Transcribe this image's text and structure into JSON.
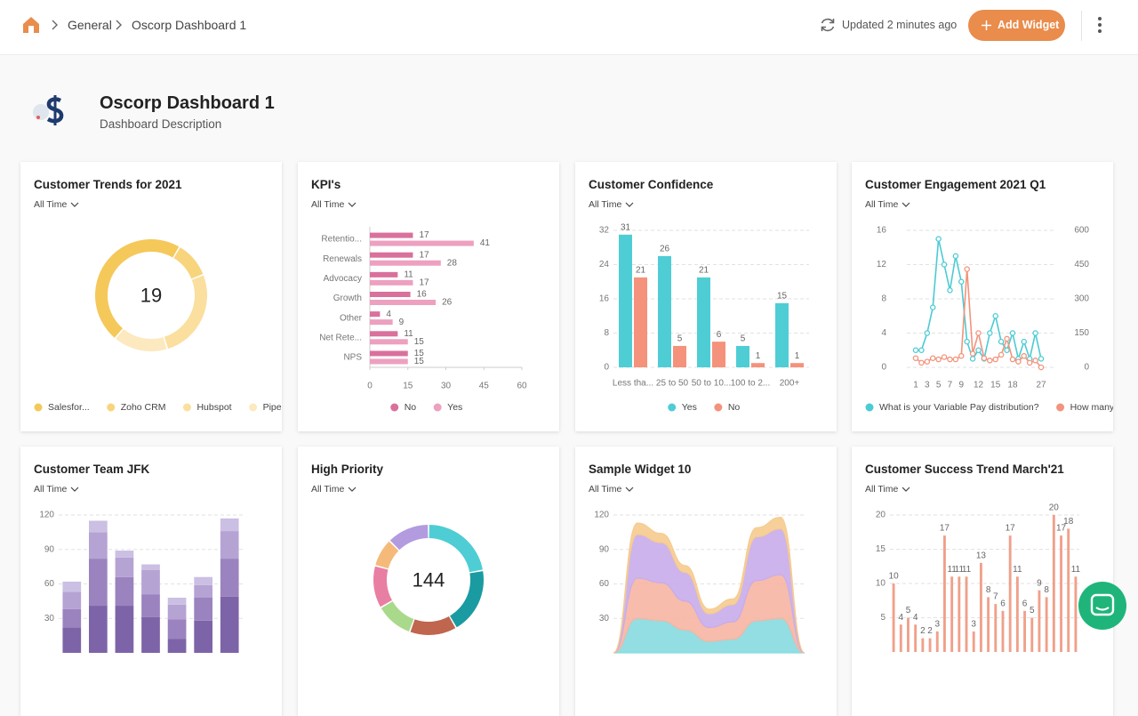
{
  "header": {
    "breadcrumbs": [
      "General",
      "Oscorp Dashboard 1"
    ],
    "status": "Updated 2 minutes ago",
    "button": "Add Widget"
  },
  "dashboard": {
    "title": "Oscorp Dashboard 1",
    "description": "Dashboard Description"
  },
  "chart_data": [
    {
      "type": "donut",
      "title": "Customer Trends for 2021",
      "filter": "All Time",
      "total": 19,
      "categories": [
        "Salesfor...",
        "Zoho CRM",
        "Hubspot",
        "Pipedriv..."
      ],
      "values": [
        9,
        2,
        5,
        3
      ],
      "colors": [
        "#f5c85a",
        "#f8d47c",
        "#fadf9e",
        "#fce9bf"
      ]
    },
    {
      "type": "bar",
      "horizontal": true,
      "title": "KPI's",
      "filter": "All Time",
      "categories": [
        "Retentio...",
        "Renewals",
        "Advocacy",
        "Growth",
        "Other",
        "Net Rete...",
        "NPS"
      ],
      "series": [
        {
          "name": "No",
          "color": "#d9719c",
          "values": [
            17,
            17,
            11,
            16,
            4,
            11,
            15
          ]
        },
        {
          "name": "Yes",
          "color": "#eda0bf",
          "values": [
            41,
            28,
            17,
            26,
            9,
            15,
            15
          ]
        }
      ],
      "xlim": [
        0,
        60
      ],
      "xticks": [
        0,
        15,
        30,
        45,
        60
      ],
      "data_labels": true
    },
    {
      "type": "bar",
      "title": "Customer Confidence",
      "filter": "All Time",
      "categories": [
        "Less tha...",
        "25 to 50",
        "50 to 10...",
        "100 to 2...",
        "200+"
      ],
      "series": [
        {
          "name": "Yes",
          "color": "#4fcdd5",
          "values": [
            31,
            26,
            21,
            5,
            15
          ]
        },
        {
          "name": "No",
          "color": "#f5927b",
          "values": [
            21,
            5,
            6,
            1,
            1
          ]
        }
      ],
      "ylim": [
        0,
        32
      ],
      "yticks": [
        0,
        8,
        16,
        24,
        32
      ],
      "grid": true,
      "data_labels": true
    },
    {
      "type": "line",
      "title": "Customer Engagement 2021 Q1",
      "filter": "All Time",
      "categories": [
        "1",
        null,
        "3",
        null,
        "5",
        null,
        "7",
        null,
        "9",
        null,
        null,
        "12",
        null,
        null,
        "15",
        null,
        null,
        "18",
        null,
        null,
        null,
        null,
        "27"
      ],
      "series": [
        {
          "name": "What is your Variable Pay distribution?",
          "color": "#4bcbd3",
          "axis": "y",
          "values": [
            2,
            2,
            4,
            7,
            15,
            12,
            9,
            13,
            10,
            3,
            1,
            2,
            1,
            4,
            6,
            3,
            2,
            4,
            1,
            3,
            1,
            4,
            1
          ]
        },
        {
          "name": "How many me",
          "color": "#f2947c",
          "axis": "y2",
          "values": [
            40,
            20,
            25,
            40,
            35,
            45,
            35,
            35,
            50,
            430,
            60,
            150,
            40,
            30,
            35,
            55,
            125,
            35,
            25,
            50,
            20,
            30,
            0
          ]
        }
      ],
      "ylim": [
        0,
        16
      ],
      "yticks": [
        0,
        4,
        8,
        12,
        16
      ],
      "y2lim": [
        0,
        600
      ],
      "y2ticks": [
        0,
        150,
        300,
        450,
        600
      ],
      "grid": true
    },
    {
      "type": "bar",
      "stacked": true,
      "title": "Customer Team JFK",
      "filter": "All Time",
      "series": [
        {
          "color": "#7d64a8",
          "values": [
            22,
            41,
            41,
            31,
            12,
            28,
            49
          ]
        },
        {
          "color": "#9a83bf",
          "values": [
            16,
            41,
            25,
            20,
            17,
            20,
            33
          ]
        },
        {
          "color": "#b5a3d4",
          "values": [
            15,
            23,
            17,
            21,
            13,
            11,
            24
          ]
        },
        {
          "color": "#cbbfe3",
          "values": [
            9,
            10,
            6,
            5,
            6,
            7,
            11
          ]
        }
      ],
      "ylim": [
        0,
        120
      ],
      "yticks": [
        30,
        60,
        90,
        120
      ],
      "grid": true
    },
    {
      "type": "donut",
      "title": "High Priority",
      "filter": "All Time",
      "total": 144,
      "values": [
        32,
        28,
        20,
        16,
        18,
        12,
        18
      ],
      "colors": [
        "#4ecdd4",
        "#1a9ba1",
        "#c0654e",
        "#a9d98b",
        "#e97ea3",
        "#f5ba7a",
        "#b39be0"
      ]
    },
    {
      "type": "area",
      "stacked": true,
      "title": "Sample Widget 10",
      "filter": "All Time",
      "series": [
        {
          "color": "#86dadf",
          "values": [
            0,
            30,
            28,
            20,
            10,
            12,
            28,
            30,
            0
          ]
        },
        {
          "color": "#f6b5a2",
          "values": [
            0,
            35,
            33,
            25,
            12,
            15,
            35,
            38,
            0
          ]
        },
        {
          "color": "#c8acea",
          "values": [
            0,
            38,
            35,
            25,
            12,
            15,
            38,
            40,
            0
          ]
        },
        {
          "color": "#f6cb8e",
          "values": [
            0,
            10,
            8,
            6,
            4,
            5,
            8,
            10,
            0
          ]
        }
      ],
      "ylim": [
        0,
        120
      ],
      "yticks": [
        30,
        60,
        90,
        120
      ],
      "grid": true
    },
    {
      "type": "bar",
      "title": "Customer Success Trend March'21",
      "filter": "All Time",
      "values": [
        10,
        4,
        5,
        4,
        2,
        2,
        3,
        17,
        11,
        11,
        11,
        3,
        13,
        8,
        7,
        6,
        17,
        11,
        6,
        5,
        9,
        8,
        20,
        17,
        18,
        11
      ],
      "color": "#f0a08a",
      "ylim": [
        0,
        20
      ],
      "yticks": [
        5,
        10,
        15,
        20
      ],
      "grid": true,
      "data_labels": true
    }
  ]
}
